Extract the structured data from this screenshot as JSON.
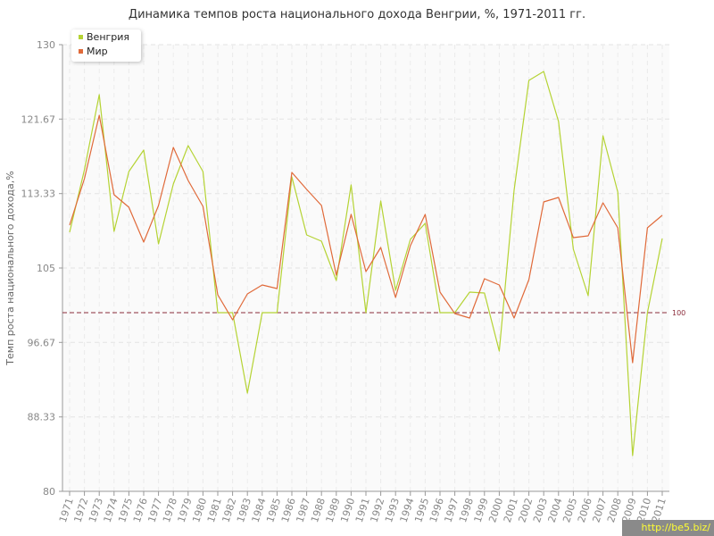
{
  "chart_data": {
    "type": "line",
    "title": "Динамика темпов роста национального дохода Венгрии, %, 1971-2011 гг.",
    "xlabel": "",
    "ylabel": "Темп роста национального дохода,%",
    "ylim": [
      80,
      130
    ],
    "y_ticks": [
      "80",
      "88.33",
      "96.67",
      "105",
      "113.33",
      "121.67",
      "130"
    ],
    "categories": [
      "1971",
      "1972",
      "1973",
      "1974",
      "1975",
      "1976",
      "1977",
      "1978",
      "1979",
      "1980",
      "1981",
      "1982",
      "1983",
      "1984",
      "1985",
      "1986",
      "1987",
      "1988",
      "1989",
      "1990",
      "1991",
      "1992",
      "1993",
      "1994",
      "1995",
      "1996",
      "1997",
      "1998",
      "1999",
      "2000",
      "2001",
      "2002",
      "2003",
      "2004",
      "2005",
      "2006",
      "2007",
      "2008",
      "2009",
      "2010",
      "2011"
    ],
    "series": [
      {
        "name": "Венгрия",
        "color": "#b5d334",
        "values": [
          109,
          116,
          124.4,
          109.1,
          115.8,
          118.2,
          107.7,
          114.4,
          118.7,
          115.8,
          100,
          100,
          91,
          100,
          100,
          115.2,
          108.7,
          108,
          103.6,
          114.3,
          100,
          112.5,
          102.5,
          108.2,
          110,
          100,
          100,
          102.3,
          102.2,
          95.7,
          113.7,
          126,
          127,
          121.4,
          107.1,
          101.9,
          119.8,
          113.5,
          84,
          100,
          108.3
        ]
      },
      {
        "name": "Мир",
        "color": "#e06a3a",
        "values": [
          109.8,
          115,
          122.1,
          113.2,
          111.8,
          107.9,
          112,
          118.5,
          114.8,
          111.9,
          102,
          99.2,
          102.1,
          103.1,
          102.7,
          115.7,
          113.8,
          112,
          104.2,
          111,
          104.6,
          107.3,
          101.7,
          107.5,
          111,
          102.3,
          99.9,
          99.4,
          103.8,
          103.1,
          99.4,
          103.7,
          112.4,
          112.9,
          108.4,
          108.6,
          112.3,
          109.5,
          94.4,
          109.5,
          110.9
        ]
      }
    ],
    "reference_line": {
      "value": 100,
      "label": "100",
      "color": "#8b2c3a"
    },
    "grid": true,
    "legend_position": "top-left"
  },
  "watermark": "http://be5.biz/"
}
